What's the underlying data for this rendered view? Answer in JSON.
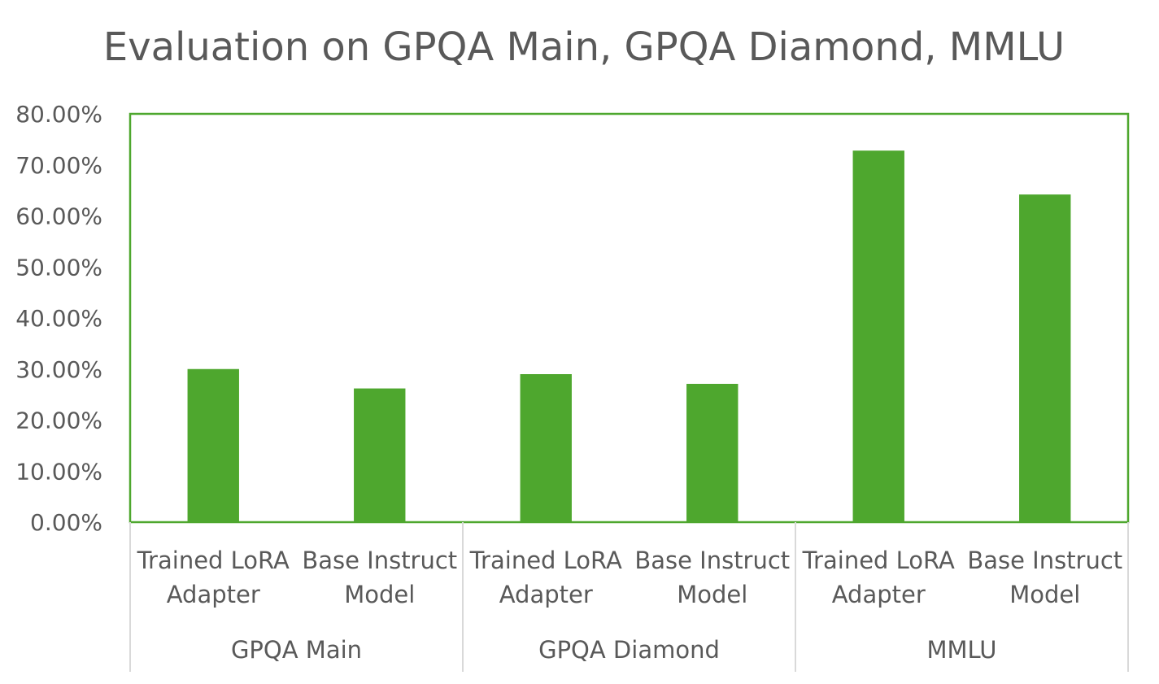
{
  "chart_data": {
    "type": "bar",
    "title": "Evaluation on GPQA Main, GPQA Diamond, MMLU",
    "xlabel": "",
    "ylabel": "",
    "ylim": [
      0,
      0.8
    ],
    "yticks": [
      "0.00%",
      "10.00%",
      "20.00%",
      "30.00%",
      "40.00%",
      "50.00%",
      "60.00%",
      "70.00%",
      "80.00%"
    ],
    "groups": [
      {
        "name": "GPQA Main",
        "categories": [
          {
            "label": [
              "Trained LoRA",
              "Adapter"
            ],
            "value": 0.3
          },
          {
            "label": [
              "Base Instruct",
              "Model"
            ],
            "value": 0.262
          }
        ]
      },
      {
        "name": "GPQA Diamond",
        "categories": [
          {
            "label": [
              "Trained LoRA",
              "Adapter"
            ],
            "value": 0.29
          },
          {
            "label": [
              "Base Instruct",
              "Model"
            ],
            "value": 0.271
          }
        ]
      },
      {
        "name": "MMLU",
        "categories": [
          {
            "label": [
              "Trained LoRA",
              "Adapter"
            ],
            "value": 0.728
          },
          {
            "label": [
              "Base Instruct",
              "Model"
            ],
            "value": 0.642
          }
        ]
      }
    ],
    "bar_color": "#4ea72e",
    "plot_border_color": "#4ea72e",
    "axis_line_color": "#d9d9d9",
    "grid": false,
    "legend": "none"
  }
}
